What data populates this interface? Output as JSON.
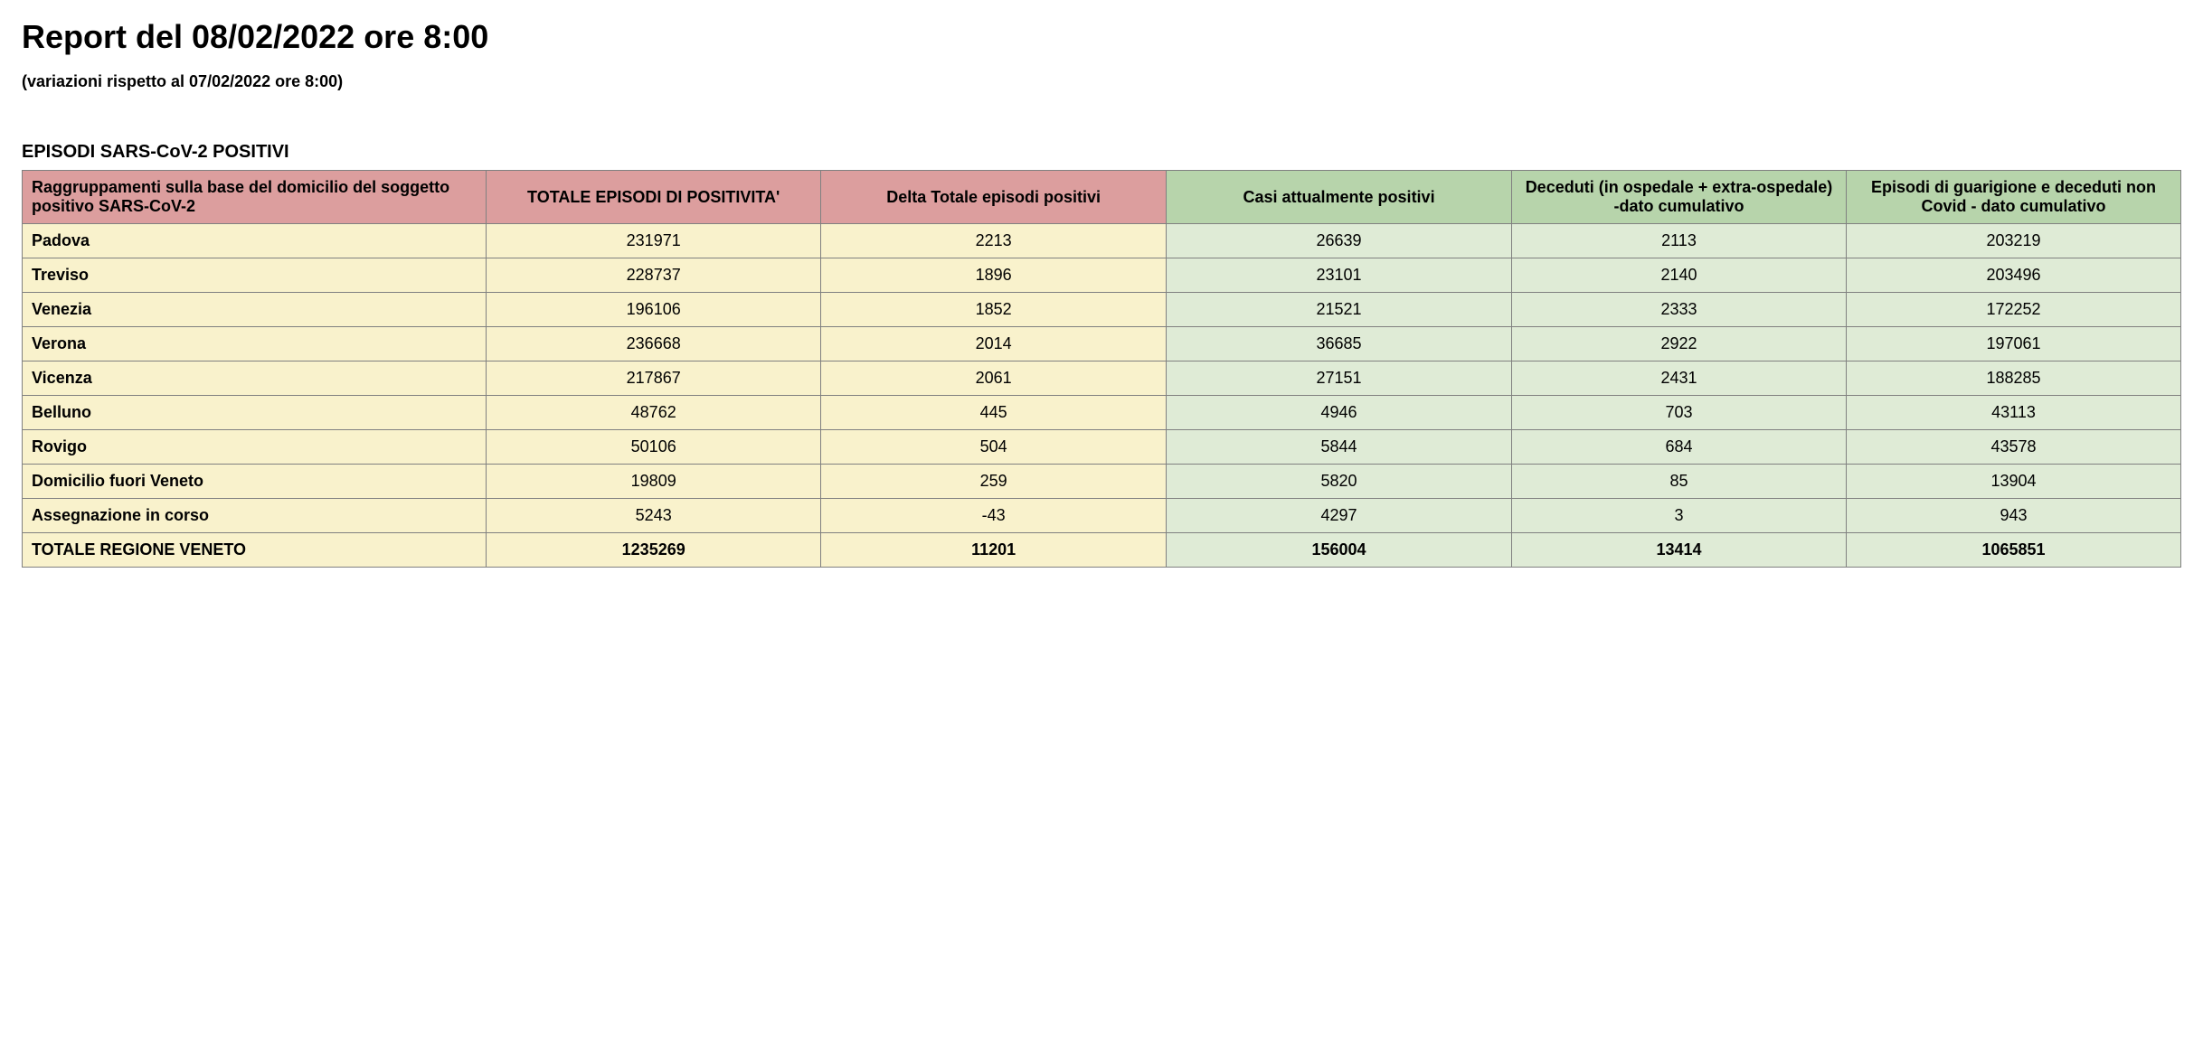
{
  "title": "Report del 08/02/2022 ore 8:00",
  "subtitle": "(variazioni rispetto al 07/02/2022 ore 8:00)",
  "section_header": "EPISODI SARS-CoV-2 POSITIVI",
  "table": {
    "columns": [
      {
        "label": "Raggruppamenti sulla base del domicilio del soggetto positivo SARS-CoV-2",
        "header_bg": "#dc9e9e",
        "body_bg": "#f9f2cc",
        "text_align": "left"
      },
      {
        "label": "TOTALE EPISODI DI POSITIVITA'",
        "header_bg": "#dc9e9e",
        "body_bg": "#f9f2cc",
        "text_align": "center"
      },
      {
        "label": "Delta Totale episodi positivi",
        "header_bg": "#dc9e9e",
        "body_bg": "#f9f2cc",
        "text_align": "center"
      },
      {
        "label": "Casi attualmente positivi",
        "header_bg": "#b7d4ab",
        "body_bg": "#dfebd6",
        "text_align": "center"
      },
      {
        "label": "Deceduti (in ospedale + extra-ospedale) -dato cumulativo",
        "header_bg": "#b7d4ab",
        "body_bg": "#dfebd6",
        "text_align": "center"
      },
      {
        "label": "Episodi di guarigione e deceduti non Covid - dato cumulativo",
        "header_bg": "#b7d4ab",
        "body_bg": "#dfebd6",
        "text_align": "center"
      }
    ],
    "rows": [
      [
        "Padova",
        "231971",
        "2213",
        "26639",
        "2113",
        "203219"
      ],
      [
        "Treviso",
        "228737",
        "1896",
        "23101",
        "2140",
        "203496"
      ],
      [
        "Venezia",
        "196106",
        "1852",
        "21521",
        "2333",
        "172252"
      ],
      [
        "Verona",
        "236668",
        "2014",
        "36685",
        "2922",
        "197061"
      ],
      [
        "Vicenza",
        "217867",
        "2061",
        "27151",
        "2431",
        "188285"
      ],
      [
        "Belluno",
        "48762",
        "445",
        "4946",
        "703",
        "43113"
      ],
      [
        "Rovigo",
        "50106",
        "504",
        "5844",
        "684",
        "43578"
      ],
      [
        "Domicilio fuori Veneto",
        "19809",
        "259",
        "5820",
        "85",
        "13904"
      ],
      [
        "Assegnazione in corso",
        "5243",
        "-43",
        "4297",
        "3",
        "943"
      ]
    ],
    "total_row": [
      "TOTALE REGIONE VENETO",
      "1235269",
      "11201",
      "156004",
      "13414",
      "1065851"
    ],
    "border_color": "#808080",
    "font_size_header": 18,
    "font_size_body": 18
  }
}
